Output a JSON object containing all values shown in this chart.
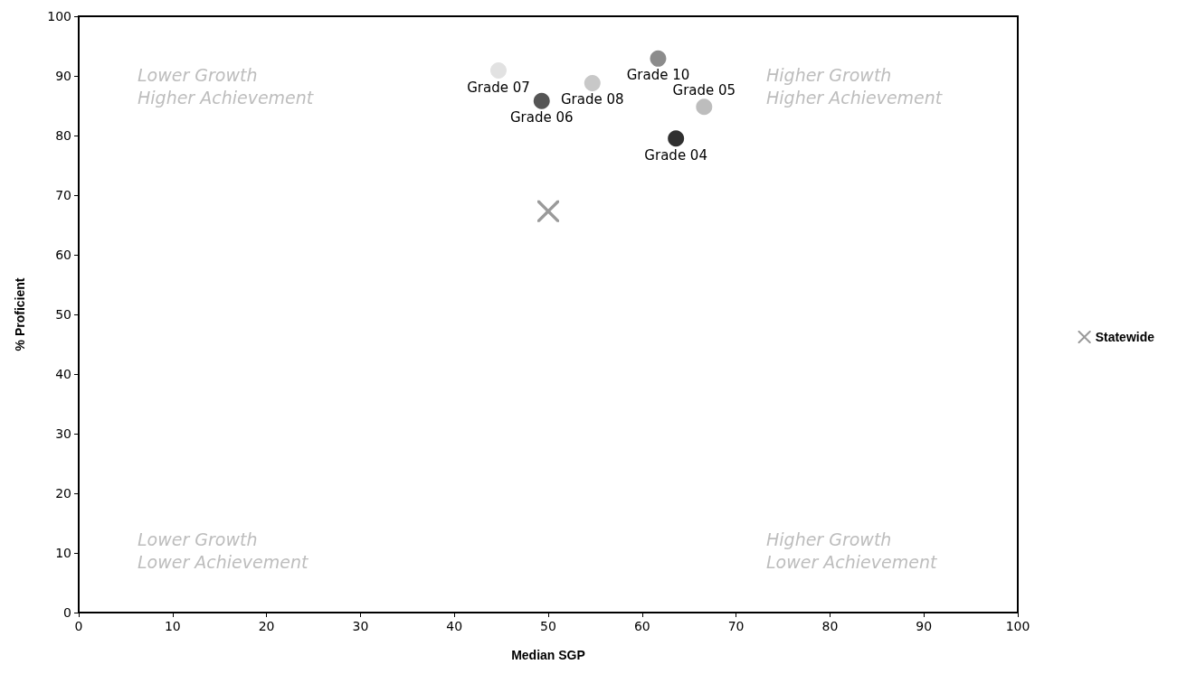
{
  "chart_data": {
    "type": "scatter",
    "xlabel": "Median SGP",
    "ylabel": "% Proficient",
    "xlim": [
      0,
      100
    ],
    "xticks": [
      0,
      10,
      20,
      30,
      40,
      50,
      60,
      70,
      80,
      90,
      100
    ],
    "ylim": [
      0,
      100
    ],
    "yticks": [
      0,
      10,
      20,
      30,
      40,
      50,
      60,
      70,
      80,
      90,
      100
    ],
    "grid": false,
    "legend": "right",
    "annotations": [
      "Lower Growth\nHigher Achievement",
      "Higher Growth\nHigher Achievement",
      "Lower Growth\nLower Achievement",
      "Higher Growth\nLower Achievement"
    ],
    "series": [
      {
        "name": "Grade 04",
        "color": "#303030",
        "marker": "circle",
        "x": [
          63.6
        ],
        "values": [
          79.5
        ]
      },
      {
        "name": "Grade 05",
        "color": "#bdbdbd",
        "marker": "circle",
        "x": [
          66.6
        ],
        "values": [
          84.8
        ]
      },
      {
        "name": "Grade 06",
        "color": "#555555",
        "marker": "circle",
        "x": [
          49.3
        ],
        "values": [
          85.8
        ]
      },
      {
        "name": "Grade 07",
        "color": "#e2e2e2",
        "marker": "circle",
        "x": [
          44.7
        ],
        "values": [
          90.9
        ]
      },
      {
        "name": "Grade 08",
        "color": "#c8c8c8",
        "marker": "circle",
        "x": [
          54.7
        ],
        "values": [
          88.8
        ]
      },
      {
        "name": "Grade 10",
        "color": "#8c8c8c",
        "marker": "circle",
        "x": [
          61.7
        ],
        "values": [
          92.9
        ]
      },
      {
        "name": "Statewide",
        "color": "#9a9a9a",
        "marker": "cross",
        "x": [
          50
        ],
        "values": [
          67.3
        ]
      }
    ]
  }
}
